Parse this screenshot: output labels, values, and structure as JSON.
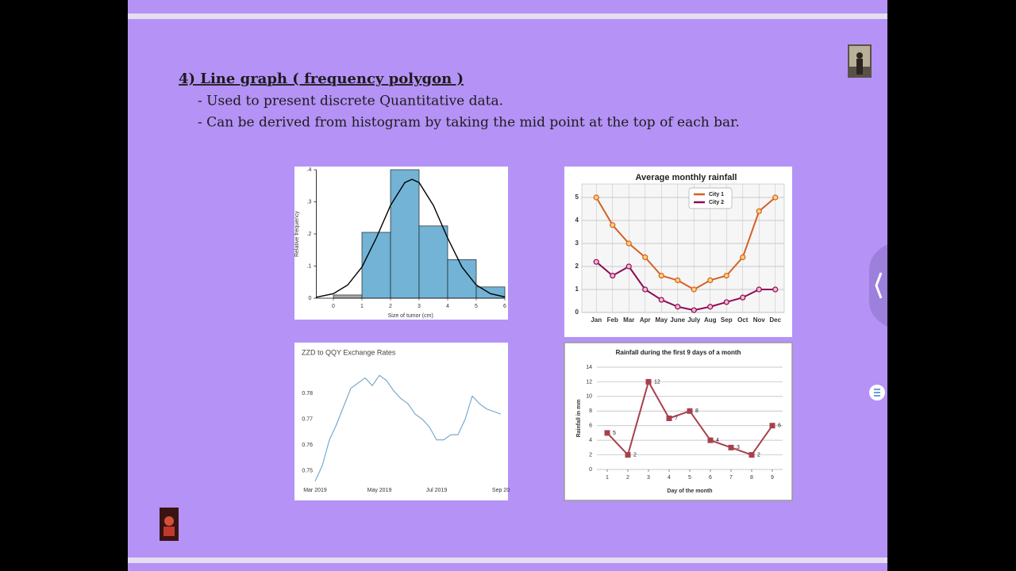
{
  "slide": {
    "title": "4) Line graph ( frequency polygon )",
    "bullets": [
      "- Used to present discrete Quantitative data.",
      "- Can be derived from histogram by taking the mid point at the top of each bar."
    ]
  },
  "chart_data": [
    {
      "type": "histogram",
      "bins": [
        0,
        1,
        2,
        3,
        4,
        5,
        6
      ],
      "values": [
        0.01,
        0.205,
        0.4,
        0.225,
        0.12,
        0.035
      ],
      "colors": [
        "#a9a9a9",
        "#72b3d6",
        "#72b3d6",
        "#72b3d6",
        "#72b3d6",
        "#72b3d6"
      ],
      "curve": {
        "x": [
          -0.6,
          0,
          0.5,
          1,
          1.5,
          2,
          2.5,
          2.75,
          3,
          3.5,
          4,
          4.5,
          5,
          5.5,
          6
        ],
        "y": [
          0.003,
          0.014,
          0.041,
          0.097,
          0.187,
          0.289,
          0.36,
          0.37,
          0.36,
          0.289,
          0.187,
          0.097,
          0.041,
          0.014,
          0.004
        ],
        "color": "#000000"
      },
      "xlabel": "Size of tumor (cm)",
      "ylabel": "Relative frequency",
      "xlim": [
        -0.6,
        6
      ],
      "ylim": [
        0,
        0.4
      ],
      "xticks": [
        0,
        1,
        2,
        3,
        4,
        5,
        6
      ],
      "yticks": [
        0,
        {
          "value": 0.1,
          "label": ".1"
        },
        {
          "value": 0.2,
          "label": ".2"
        },
        {
          "value": 0.3,
          "label": ".3"
        },
        {
          "value": 0.4,
          "label": ".4"
        }
      ]
    },
    {
      "type": "line",
      "title": "Average monthly rainfall",
      "categories": [
        "Jan",
        "Feb",
        "Mar",
        "Apr",
        "May",
        "June",
        "July",
        "Aug",
        "Sep",
        "Oct",
        "Nov",
        "Dec"
      ],
      "series": [
        {
          "name": "City 1",
          "color": "#d5601f",
          "marker_color": "#ffd27a",
          "values": [
            5,
            3.8,
            3.0,
            2.4,
            1.6,
            1.4,
            1.0,
            1.4,
            1.6,
            2.4,
            4.4,
            5.0
          ]
        },
        {
          "name": "City 2",
          "color": "#8e0b52",
          "marker_color": "#f2b6d4",
          "values": [
            2.2,
            1.6,
            2.0,
            1.0,
            0.55,
            0.25,
            0.1,
            0.25,
            0.45,
            0.65,
            1.0,
            1.0
          ]
        }
      ],
      "ylim": [
        0,
        5.5
      ],
      "yticks": [
        0,
        1,
        2,
        3,
        4,
        5
      ],
      "grid": true,
      "legend": "top-right"
    },
    {
      "type": "line",
      "title": "ZZD to QQY Exchange Rates",
      "categories": [
        "Mar 2019",
        null,
        null,
        null,
        null,
        null,
        null,
        null,
        null,
        "May 2019",
        null,
        null,
        null,
        null,
        null,
        null,
        null,
        "Jul 2019",
        null,
        null,
        null,
        null,
        null,
        null,
        null,
        null,
        "Sep 20"
      ],
      "values": [
        0.746,
        0.752,
        0.762,
        0.768,
        0.775,
        0.782,
        0.784,
        0.786,
        0.783,
        0.787,
        0.785,
        0.781,
        0.778,
        0.776,
        0.772,
        0.77,
        0.767,
        0.762,
        0.762,
        0.764,
        0.764,
        0.77,
        0.779,
        0.776,
        0.774,
        0.773,
        0.772
      ],
      "color": "#6fa3c7",
      "ylim": [
        0.745,
        0.792
      ],
      "yticks": [
        0.75,
        0.76,
        0.77,
        0.78
      ],
      "grid": false
    },
    {
      "type": "line",
      "title": "Rainfall during the first 9 days of a month",
      "x": [
        1,
        2,
        3,
        4,
        5,
        6,
        7,
        8,
        9
      ],
      "values": [
        5,
        2,
        12,
        7,
        8,
        4,
        3,
        2,
        6
      ],
      "color": "#a8404c",
      "xlabel": "Day of the month",
      "ylabel": "Rainfall in mm",
      "xlim": [
        0.5,
        9.5
      ],
      "ylim": [
        0,
        14
      ],
      "xticks": [
        1,
        2,
        3,
        4,
        5,
        6,
        7,
        8,
        9
      ],
      "yticks": [
        0,
        2,
        4,
        6,
        8,
        10,
        12,
        14
      ],
      "grid": true,
      "data_labels": true
    }
  ]
}
